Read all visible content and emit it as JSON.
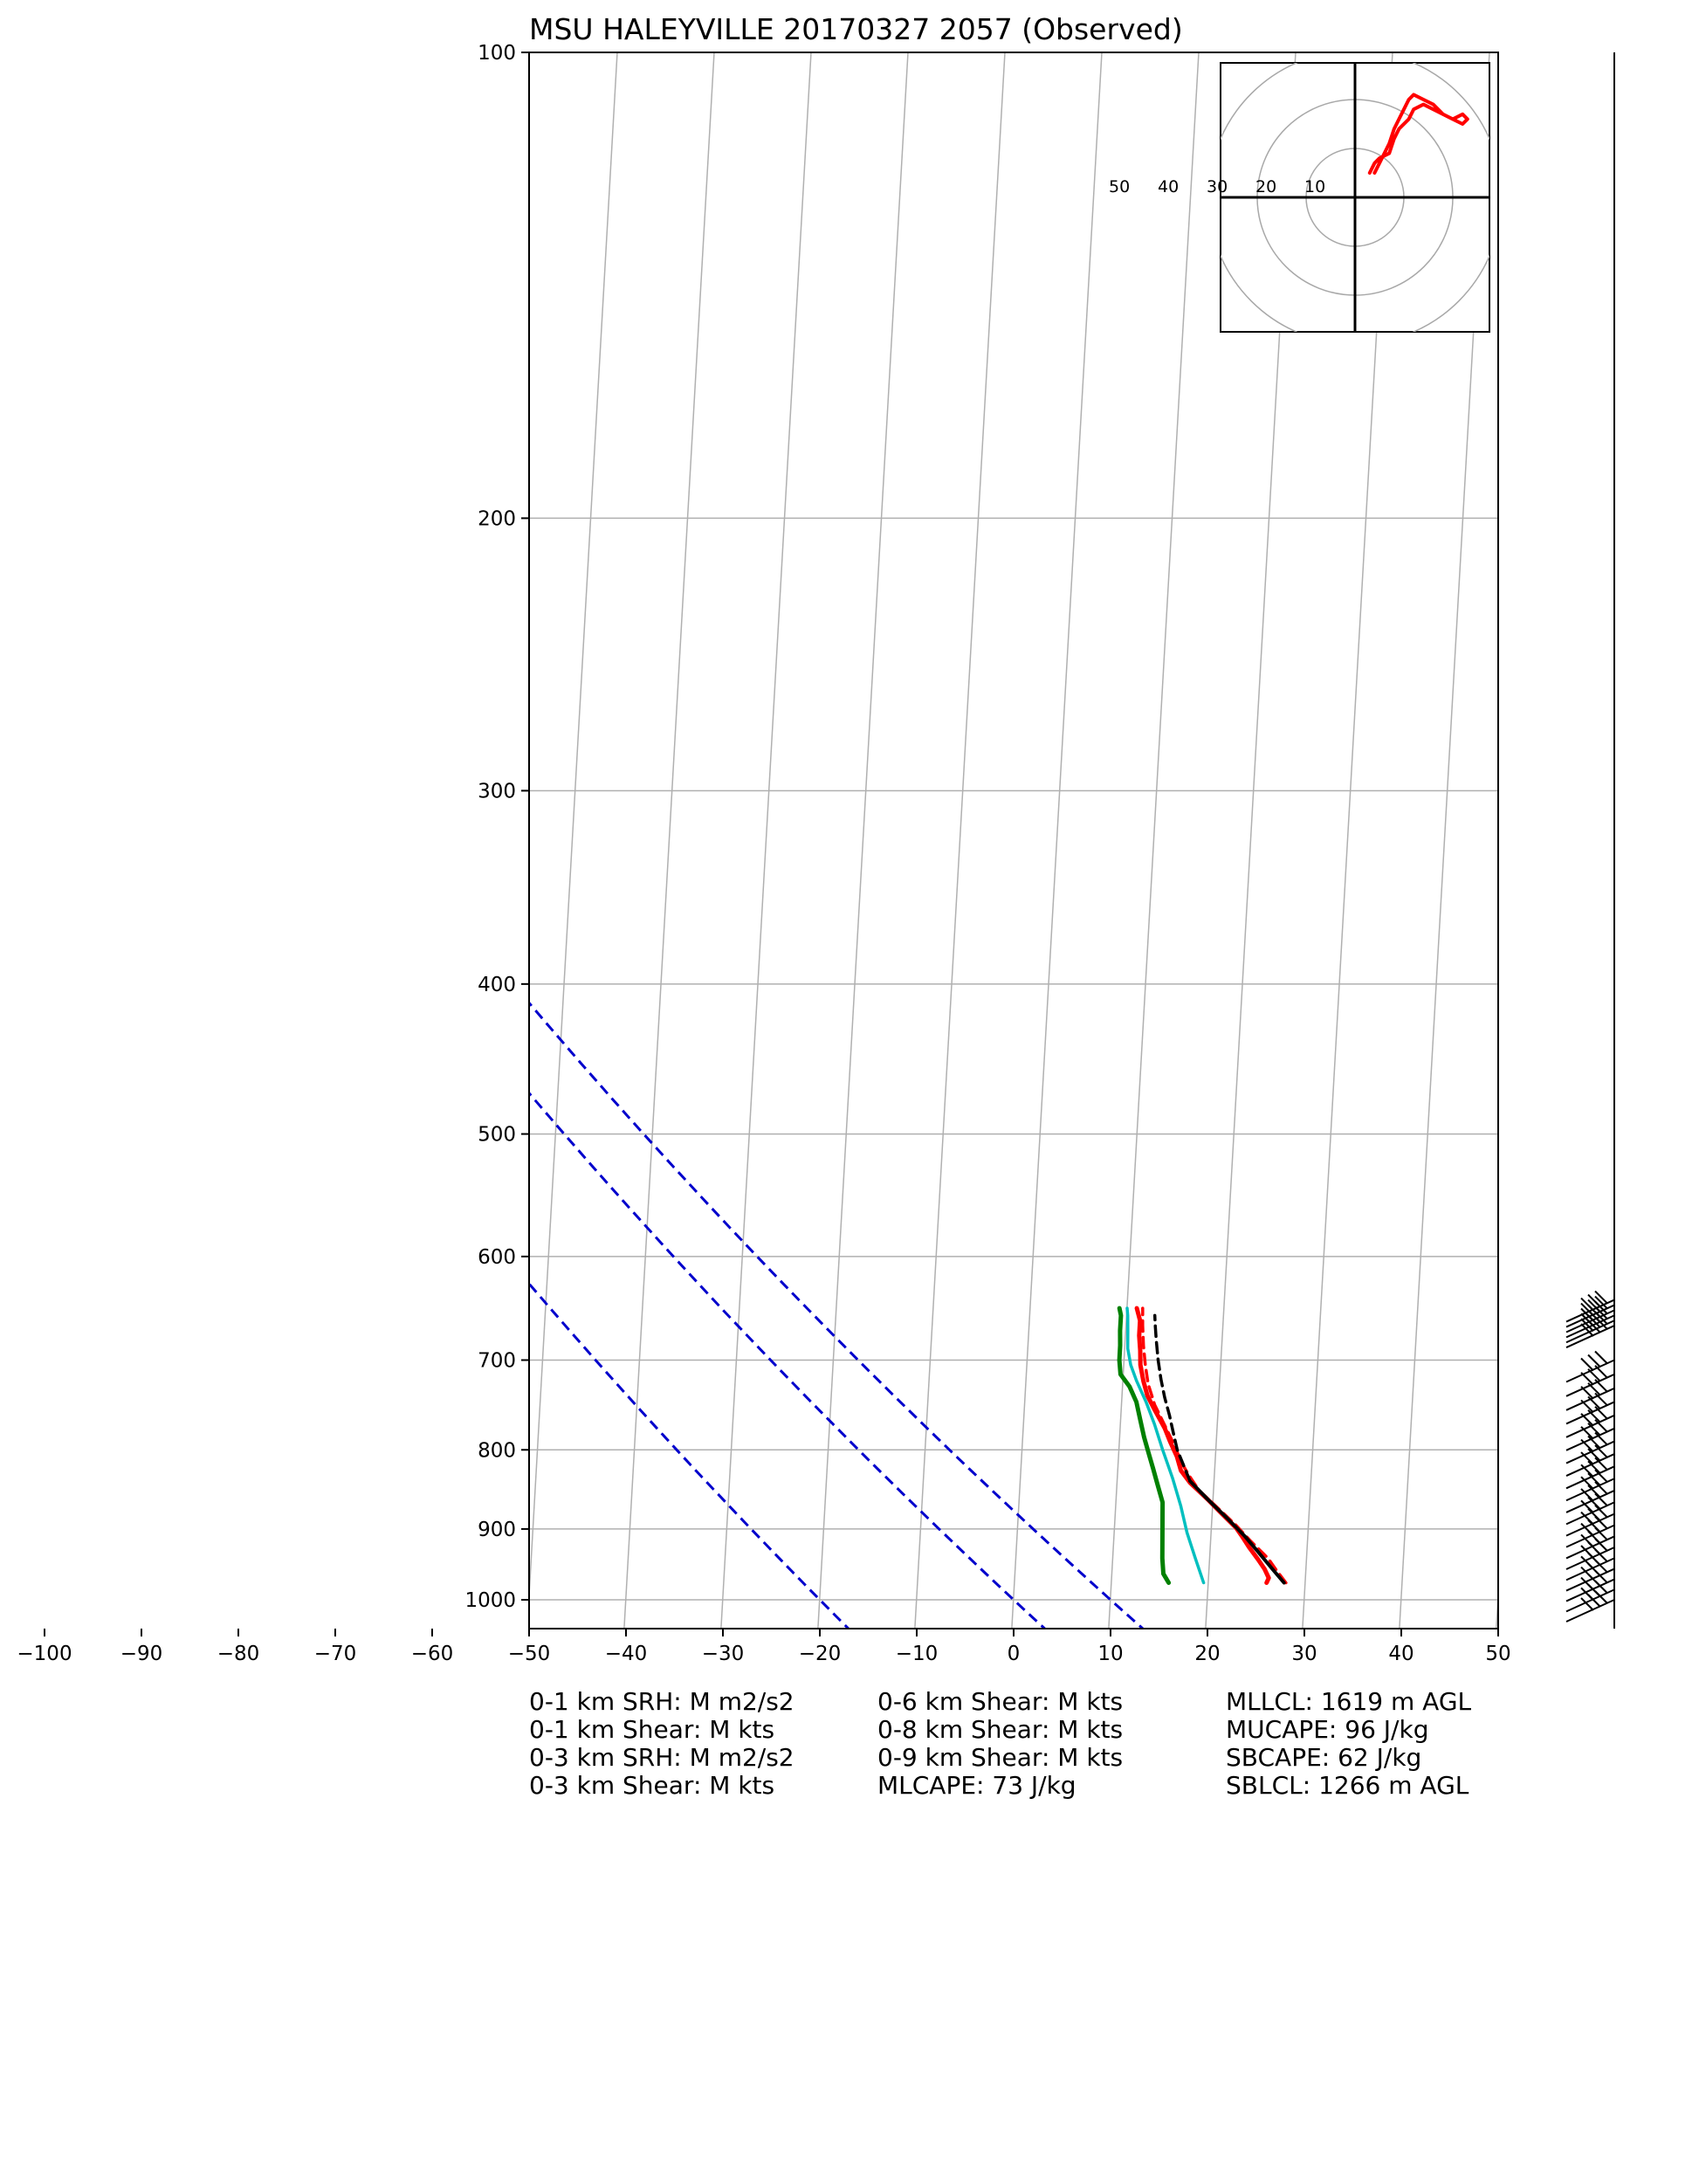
{
  "chart_data": {
    "type": "line",
    "title": "MSU HALEYVILLE 20170327 2057   (Observed)",
    "x_axis": {
      "range": [
        -100,
        50
      ],
      "ticks": [
        -100,
        -90,
        -80,
        -70,
        -60,
        -50,
        -40,
        -30,
        -20,
        -10,
        0,
        10,
        20,
        30,
        40,
        50
      ],
      "tick_labels": [
        "−100",
        "−90",
        "−80",
        "−70",
        "−60",
        "−50",
        "−40",
        "−30",
        "−20",
        "−10",
        "0",
        "10",
        "20",
        "30",
        "40",
        "50"
      ]
    },
    "y_axis": {
      "scale": "log",
      "range": [
        1050,
        100
      ],
      "ticks": [
        100,
        200,
        300,
        400,
        500,
        600,
        700,
        800,
        900,
        1000
      ],
      "tick_labels": [
        "100",
        "200",
        "300",
        "400",
        "500",
        "600",
        "700",
        "800",
        "900",
        "1000"
      ]
    },
    "grid": true,
    "series": [
      {
        "color": "#ff0000",
        "style": "solid",
        "width": 5,
        "points": [
          [
            26.0,
            975
          ],
          [
            26.2,
            968
          ],
          [
            25.7,
            955
          ],
          [
            25.0,
            942
          ],
          [
            24.0,
            925
          ],
          [
            23.2,
            910
          ],
          [
            22.5,
            898
          ],
          [
            21.0,
            880
          ],
          [
            19.5,
            862
          ],
          [
            17.5,
            840
          ],
          [
            16.5,
            825
          ],
          [
            16.0,
            808
          ],
          [
            15.2,
            790
          ],
          [
            14.6,
            775
          ],
          [
            13.5,
            755
          ],
          [
            12.6,
            738
          ],
          [
            12.1,
            722
          ],
          [
            11.7,
            705
          ],
          [
            11.6,
            690
          ],
          [
            11.4,
            675
          ],
          [
            11.4,
            660
          ],
          [
            11.0,
            648
          ]
        ]
      },
      {
        "color": "#ff0000",
        "style": "dashed",
        "width": 3.5,
        "points": [
          [
            28.0,
            975
          ],
          [
            27.0,
            958
          ],
          [
            26.0,
            940
          ],
          [
            24.0,
            915
          ],
          [
            22.5,
            895
          ],
          [
            20.5,
            872
          ],
          [
            18.5,
            850
          ],
          [
            17.3,
            830
          ],
          [
            16.5,
            815
          ],
          [
            15.7,
            795
          ],
          [
            14.6,
            772
          ],
          [
            13.4,
            748
          ],
          [
            12.6,
            725
          ],
          [
            12.2,
            705
          ],
          [
            11.9,
            685
          ],
          [
            11.7,
            665
          ],
          [
            11.6,
            648
          ]
        ]
      },
      {
        "color": "#000000",
        "style": "solid",
        "width": 4,
        "points": [
          [
            27.8,
            975
          ],
          [
            26.5,
            955
          ],
          [
            25.0,
            932
          ],
          [
            23.5,
            910
          ],
          [
            21.5,
            885
          ],
          [
            19.5,
            862
          ],
          [
            17.5,
            838
          ]
        ]
      },
      {
        "color": "#000000",
        "style": "dashed",
        "width": 3.5,
        "points": [
          [
            17.5,
            838
          ],
          [
            16.8,
            820
          ],
          [
            16.0,
            800
          ],
          [
            15.5,
            780
          ],
          [
            15.0,
            760
          ],
          [
            14.4,
            740
          ],
          [
            13.9,
            720
          ],
          [
            13.5,
            700
          ],
          [
            13.2,
            680
          ],
          [
            13.0,
            665
          ],
          [
            12.9,
            655
          ]
        ]
      },
      {
        "color": "#00bfbf",
        "style": "solid",
        "width": 3.5,
        "points": [
          [
            19.5,
            975
          ],
          [
            18.5,
            940
          ],
          [
            17.5,
            905
          ],
          [
            16.7,
            870
          ],
          [
            15.7,
            835
          ],
          [
            14.5,
            800
          ],
          [
            13.5,
            770
          ],
          [
            12.5,
            745
          ],
          [
            11.4,
            722
          ],
          [
            10.7,
            705
          ],
          [
            10.3,
            688
          ],
          [
            10.2,
            670
          ],
          [
            10.1,
            655
          ],
          [
            10.0,
            648
          ]
        ]
      },
      {
        "color": "#008000",
        "style": "solid",
        "width": 5,
        "points": [
          [
            15.9,
            975
          ],
          [
            15.3,
            962
          ],
          [
            15.1,
            940
          ],
          [
            15.0,
            915
          ],
          [
            14.9,
            890
          ],
          [
            14.8,
            865
          ],
          [
            14.1,
            840
          ],
          [
            13.6,
            822
          ],
          [
            13.1,
            805
          ],
          [
            12.5,
            785
          ],
          [
            12.0,
            765
          ],
          [
            11.5,
            745
          ],
          [
            10.7,
            728
          ],
          [
            9.7,
            715
          ],
          [
            9.5,
            700
          ],
          [
            9.5,
            685
          ],
          [
            9.4,
            670
          ],
          [
            9.4,
            655
          ],
          [
            9.2,
            648
          ]
        ]
      }
    ],
    "reference_lines": [
      {
        "color": "#0000cc",
        "style": "dashed",
        "surface_temp_c": -20
      },
      {
        "color": "#0000cc",
        "style": "dashed",
        "surface_temp_c": 0
      },
      {
        "color": "#0000cc",
        "style": "dashed",
        "surface_temp_c": 10
      }
    ],
    "hodograph": {
      "ring_labels": [
        "50",
        "40",
        "30",
        "20",
        "10"
      ],
      "trace_color": "#ff0000",
      "trace": [
        [
          3,
          5
        ],
        [
          4,
          7
        ],
        [
          5,
          8
        ],
        [
          7,
          9
        ],
        [
          8,
          12
        ],
        [
          9,
          14
        ],
        [
          11,
          16
        ],
        [
          12,
          18
        ],
        [
          14,
          19
        ],
        [
          16,
          18
        ],
        [
          18,
          17
        ],
        [
          20,
          16
        ],
        [
          22,
          15
        ],
        [
          23,
          16
        ],
        [
          22,
          17
        ],
        [
          20,
          16
        ],
        [
          18,
          17
        ],
        [
          16,
          19
        ],
        [
          14,
          20
        ],
        [
          12,
          21
        ],
        [
          11,
          20
        ],
        [
          10,
          18
        ],
        [
          9,
          16
        ],
        [
          8,
          14
        ],
        [
          7,
          11
        ],
        [
          6,
          9
        ],
        [
          5,
          7
        ],
        [
          4,
          5
        ]
      ]
    },
    "wind_barbs": {
      "color": "#000000",
      "levels": [
        1000,
        985,
        970,
        955,
        940,
        925,
        910,
        895,
        880,
        865,
        850,
        835,
        820,
        805,
        790,
        775,
        760,
        745,
        730,
        715,
        700,
        665,
        660,
        655,
        650,
        645,
        640
      ]
    }
  },
  "stats": {
    "col1": [
      "0-1 km SRH: M m2/s2",
      "0-1 km Shear: M kts",
      "0-3 km SRH: M m2/s2",
      "0-3 km Shear: M kts"
    ],
    "col2": [
      "0-6 km Shear: M kts",
      "0-8 km Shear: M kts",
      "0-9 km Shear: M kts",
      "MLCAPE: 73 J/kg"
    ],
    "col3": [
      "MLLCL: 1619 m AGL",
      "MUCAPE: 96 J/kg",
      "SBCAPE: 62 J/kg",
      "SBLCL: 1266 m AGL"
    ]
  }
}
